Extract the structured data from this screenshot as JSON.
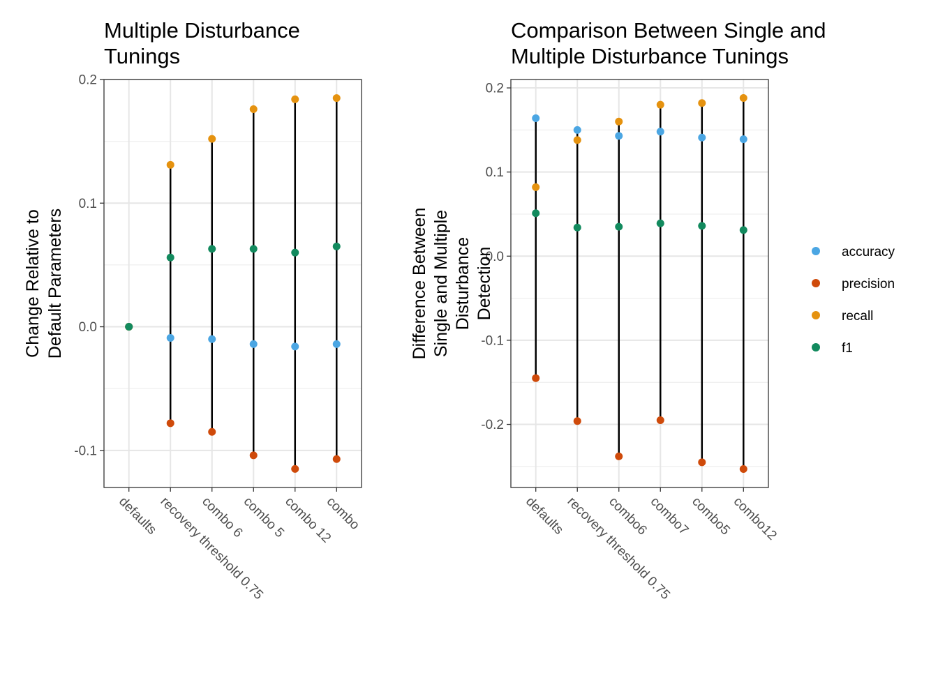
{
  "legend": {
    "items": [
      {
        "label": "accuracy",
        "color": "#4BA6E3"
      },
      {
        "label": "precision",
        "color": "#CF4A0A"
      },
      {
        "label": "recall",
        "color": "#E5920F"
      },
      {
        "label": "f1",
        "color": "#128A5E"
      }
    ]
  },
  "chart_data": [
    {
      "type": "scatter",
      "title_lines": [
        "Multiple Disturbance",
        "Tunings"
      ],
      "ylabel_lines": [
        "Change Relative to",
        "Default Parameters"
      ],
      "categories": [
        "defaults",
        "recovery threshold 0.75",
        "combo 6",
        "combo 5",
        "combo 12",
        "combo"
      ],
      "ylim": [
        -0.13,
        0.2
      ],
      "yticks": [
        -0.1,
        0.0,
        0.1,
        0.2
      ],
      "ytick_labels": [
        "-0.1",
        "0.0",
        "0.1",
        "0.2"
      ],
      "grid": true,
      "segment_color": "#000000",
      "series": [
        {
          "name": "accuracy",
          "values": [
            0,
            -0.009,
            -0.01,
            -0.014,
            -0.016,
            -0.014
          ]
        },
        {
          "name": "precision",
          "values": [
            0,
            -0.078,
            -0.085,
            -0.104,
            -0.115,
            -0.107
          ]
        },
        {
          "name": "recall",
          "values": [
            0,
            0.131,
            0.152,
            0.176,
            0.184,
            0.185
          ]
        },
        {
          "name": "f1",
          "values": [
            0,
            0.056,
            0.063,
            0.063,
            0.06,
            0.065
          ]
        }
      ]
    },
    {
      "type": "scatter",
      "title_lines": [
        "Comparison Between Single and",
        "Multiple Disturbance Tunings"
      ],
      "ylabel_lines": [
        "Difference Between",
        "Single and Multiple",
        "Disturbance",
        "Detection"
      ],
      "categories": [
        "defaults",
        "recovery threshold 0.75",
        "combo6",
        "combo7",
        "combo5",
        "combo12"
      ],
      "ylim": [
        -0.275,
        0.21
      ],
      "yticks": [
        -0.2,
        -0.1,
        0.0,
        0.1,
        0.2
      ],
      "ytick_labels": [
        "-0.2",
        "-0.1",
        "0.0",
        "0.1",
        "0.2"
      ],
      "grid": true,
      "segment_color": "#000000",
      "series": [
        {
          "name": "accuracy",
          "values": [
            0.164,
            0.15,
            0.143,
            0.148,
            0.141,
            0.139
          ]
        },
        {
          "name": "precision",
          "values": [
            -0.145,
            -0.196,
            -0.238,
            -0.195,
            -0.245,
            -0.253
          ]
        },
        {
          "name": "recall",
          "values": [
            0.082,
            0.138,
            0.16,
            0.18,
            0.182,
            0.188
          ]
        },
        {
          "name": "f1",
          "values": [
            0.051,
            0.034,
            0.035,
            0.039,
            0.036,
            0.031
          ]
        }
      ]
    }
  ]
}
